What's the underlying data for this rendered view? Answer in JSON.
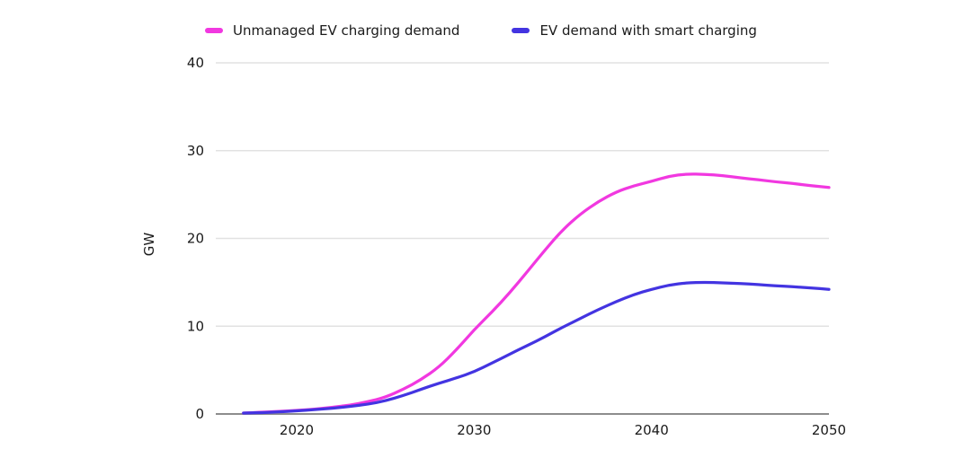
{
  "theme": {
    "background": "#ffffff",
    "grid_color": "#e2e2e2",
    "axis_color": "#8d8d8d",
    "label_color": "#1a1a1a"
  },
  "chart_data": {
    "type": "line",
    "title": "",
    "xlabel": "",
    "ylabel": "GW",
    "x": [
      2017,
      2018,
      2019,
      2020,
      2021,
      2022,
      2023,
      2024,
      2025,
      2026,
      2027,
      2028,
      2029,
      2030,
      2031,
      2032,
      2033,
      2034,
      2035,
      2036,
      2037,
      2038,
      2039,
      2040,
      2041,
      2042,
      2043,
      2044,
      2045,
      2046,
      2047,
      2048,
      2049,
      2050
    ],
    "series": [
      {
        "name": "Unmanaged EV charging demand",
        "color": "#F138E0",
        "values": [
          0.1,
          0.2,
          0.3,
          0.4,
          0.55,
          0.75,
          1.0,
          1.4,
          1.9,
          2.8,
          3.9,
          5.3,
          7.3,
          9.6,
          11.6,
          13.8,
          16.2,
          18.7,
          21.0,
          22.8,
          24.2,
          25.3,
          26.0,
          26.5,
          27.1,
          27.35,
          27.3,
          27.15,
          26.9,
          26.7,
          26.45,
          26.25,
          26.0,
          25.8
        ]
      },
      {
        "name": "EV demand with smart charging",
        "color": "#4334E1",
        "values": [
          0.1,
          0.15,
          0.25,
          0.35,
          0.5,
          0.65,
          0.85,
          1.1,
          1.5,
          2.1,
          2.8,
          3.5,
          4.1,
          4.8,
          5.8,
          6.8,
          7.8,
          8.8,
          9.9,
          10.9,
          11.9,
          12.8,
          13.6,
          14.2,
          14.7,
          14.95,
          15.0,
          14.95,
          14.85,
          14.75,
          14.6,
          14.5,
          14.35,
          14.2
        ]
      }
    ],
    "ylim": [
      0,
      40
    ],
    "yticks": [
      0,
      10,
      20,
      30,
      40
    ],
    "xticks": [
      2020,
      2030,
      2040,
      2050
    ],
    "grid": "horizontal",
    "legend_position": "top"
  }
}
